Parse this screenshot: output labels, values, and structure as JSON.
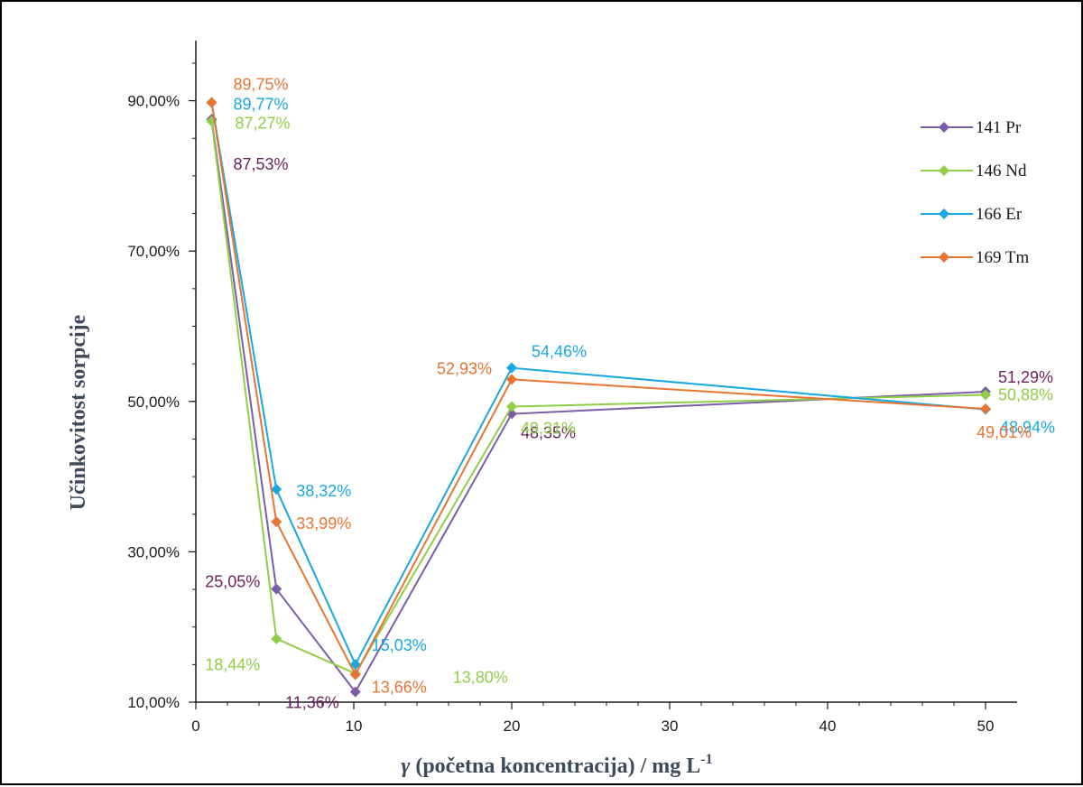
{
  "chart_data": {
    "type": "line",
    "xlabel_prefix": "γ",
    "xlabel_main": " (početna koncentracija) /  mg  L",
    "xlabel_sup": "-1",
    "ylabel": "Učinkovitost sorpcije",
    "x_categories": [
      1,
      5,
      10,
      20,
      50
    ],
    "x_tick_labels": [
      "0",
      "10",
      "20",
      "30",
      "40",
      "50"
    ],
    "y_tick_labels": [
      "10,00%",
      "30,00%",
      "50,00%",
      "70,00%",
      "90,00%"
    ],
    "ylim": [
      10,
      98
    ],
    "legend_position": "top-right",
    "series": [
      {
        "name": "141 Pr",
        "color": "#7b5ea7",
        "label_color": "#6b1f5f",
        "values": [
          87.53,
          25.05,
          11.36,
          48.35,
          51.29
        ],
        "labels": [
          "87,53%",
          "25,05%",
          "11,36%",
          "48,35%",
          "51,29%"
        ]
      },
      {
        "name": "146 Nd",
        "color": "#8fce46",
        "label_color": "#8fce46",
        "values": [
          87.27,
          18.44,
          13.8,
          49.31,
          50.88
        ],
        "labels": [
          "87,27%",
          "18,44%",
          "13,80%",
          "49,31%",
          "50,88%"
        ]
      },
      {
        "name": "166 Er",
        "color": "#18a8e0",
        "label_color": "#18a8e0",
        "values": [
          89.77,
          38.32,
          15.03,
          54.46,
          48.94
        ],
        "labels": [
          "89,77%",
          "38,32%",
          "15,03%",
          "54,46%",
          "48,94%"
        ]
      },
      {
        "name": "169 Tm",
        "color": "#e87432",
        "label_color": "#e87432",
        "values": [
          89.75,
          33.99,
          13.66,
          52.93,
          49.01
        ],
        "labels": [
          "89,75%",
          "33,99%",
          "13,66%",
          "52,93%",
          "49,01%"
        ]
      }
    ]
  }
}
